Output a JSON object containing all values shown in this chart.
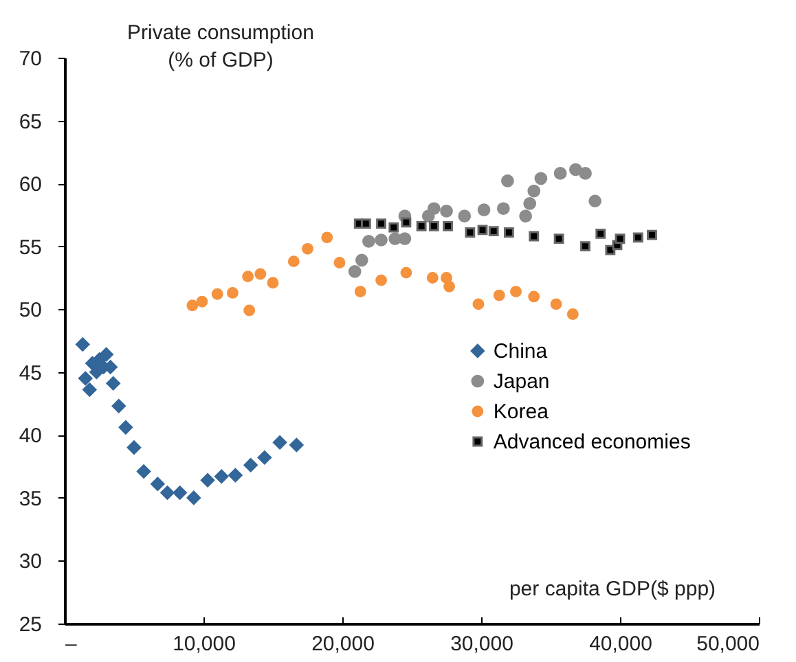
{
  "chart_data": {
    "type": "scatter",
    "xlabel": "per capita GDP($ ppp)",
    "ylabel": "Private consumption\n(% of GDP)",
    "xlim": [
      0,
      50000
    ],
    "ylim": [
      25,
      70
    ],
    "xticks": [
      {
        "value": 0,
        "label": "–"
      },
      {
        "value": 10000,
        "label": "10,000"
      },
      {
        "value": 20000,
        "label": "20,000"
      },
      {
        "value": 30000,
        "label": "30,000"
      },
      {
        "value": 40000,
        "label": "40,000"
      },
      {
        "value": 50000,
        "label": "50,000"
      }
    ],
    "yticks": [
      25,
      30,
      35,
      40,
      45,
      50,
      55,
      60,
      65,
      70
    ],
    "grid": false,
    "legend": "right",
    "series": [
      {
        "name": "China",
        "color": "#336699",
        "marker": "diamond",
        "x": [
          1300,
          1800,
          1500,
          2000,
          2500,
          3000,
          2300,
          2800,
          3300,
          3500,
          3900,
          4400,
          5000,
          5700,
          6700,
          7400,
          8300,
          9300,
          10300,
          11300,
          12300,
          13400,
          14400,
          15500,
          16700
        ],
        "values": [
          47.2,
          43.6,
          44.5,
          45.7,
          46.0,
          46.4,
          45.0,
          45.4,
          45.4,
          44.1,
          42.3,
          40.6,
          39.0,
          37.1,
          36.1,
          35.4,
          35.4,
          35.0,
          36.4,
          36.7,
          36.8,
          37.6,
          38.2,
          39.4,
          39.2
        ]
      },
      {
        "name": "Japan",
        "color": "#8c8c8c",
        "marker": "circle",
        "x": [
          20900,
          21400,
          21900,
          22800,
          23800,
          24500,
          24500,
          26200,
          26600,
          27500,
          28800,
          30200,
          31600,
          33200,
          33500,
          33800,
          31900,
          34300,
          35700,
          36800,
          37500,
          38200
        ],
        "values": [
          53.0,
          53.9,
          55.4,
          55.5,
          55.6,
          55.6,
          57.4,
          57.4,
          58.0,
          57.8,
          57.4,
          57.9,
          58.0,
          57.4,
          58.4,
          59.4,
          60.2,
          60.4,
          60.8,
          61.1,
          60.8,
          58.6
        ]
      },
      {
        "name": "Korea",
        "color": "#f5923e",
        "marker": "circle",
        "x": [
          9200,
          9900,
          11000,
          12100,
          13300,
          13200,
          14100,
          15000,
          16500,
          17500,
          18900,
          19800,
          21300,
          22800,
          24600,
          26500,
          27500,
          27700,
          29800,
          31300,
          32500,
          33800,
          35400,
          36600
        ],
        "values": [
          50.3,
          50.6,
          51.2,
          51.3,
          49.9,
          52.6,
          52.8,
          52.1,
          53.8,
          54.8,
          55.7,
          53.7,
          51.4,
          52.3,
          52.9,
          52.5,
          52.5,
          51.8,
          50.4,
          51.1,
          51.4,
          51.0,
          50.4,
          49.6
        ]
      },
      {
        "name": "Advanced economies",
        "color": "#000000",
        "marker": "square",
        "x": [
          21200,
          21700,
          22800,
          23700,
          24600,
          25700,
          26600,
          27600,
          29200,
          30100,
          30900,
          32000,
          33800,
          35600,
          37500,
          38600,
          39300,
          39800,
          40000,
          41300,
          42300
        ],
        "values": [
          56.8,
          56.8,
          56.8,
          56.5,
          56.9,
          56.6,
          56.6,
          56.6,
          56.1,
          56.3,
          56.2,
          56.1,
          55.8,
          55.6,
          55.0,
          56.0,
          54.7,
          55.1,
          55.6,
          55.7,
          55.9
        ]
      }
    ]
  }
}
